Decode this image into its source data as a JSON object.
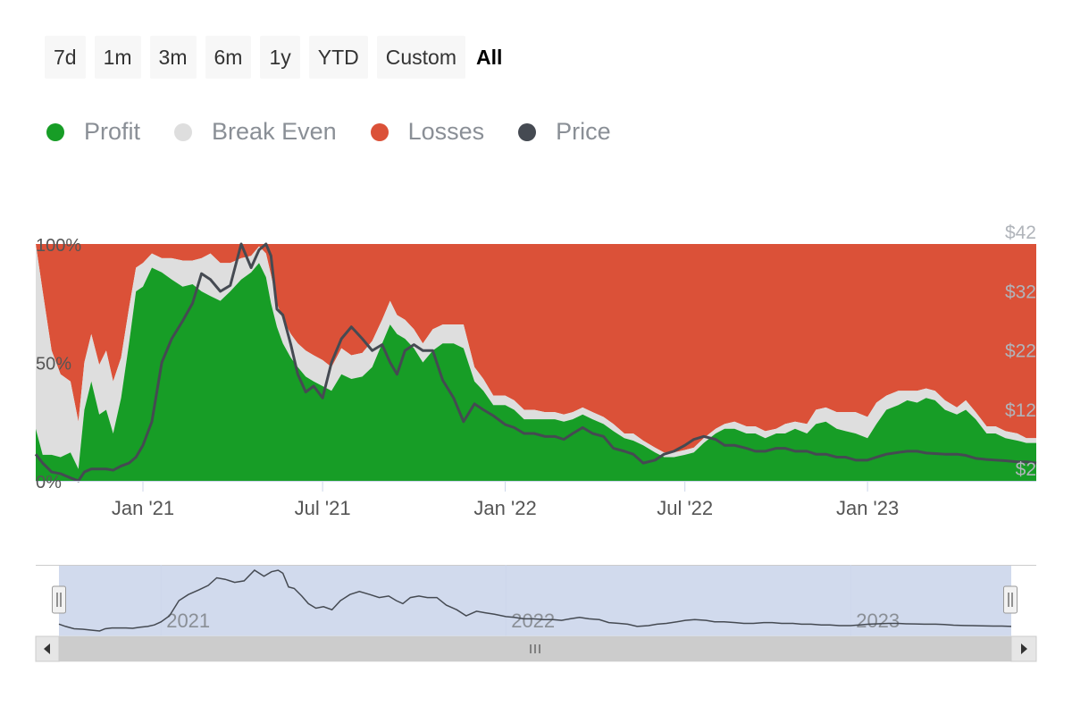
{
  "range_selector": {
    "buttons": [
      {
        "id": "7d",
        "label": "7d"
      },
      {
        "id": "1m",
        "label": "1m"
      },
      {
        "id": "3m",
        "label": "3m"
      },
      {
        "id": "6m",
        "label": "6m"
      },
      {
        "id": "1y",
        "label": "1y"
      },
      {
        "id": "ytd",
        "label": "YTD"
      },
      {
        "id": "custom",
        "label": "Custom"
      }
    ],
    "selected_label": "All"
  },
  "legend": [
    {
      "label": "Profit",
      "color": "#179d26"
    },
    {
      "label": "Break Even",
      "color": "#dedede"
    },
    {
      "label": "Losses",
      "color": "#db5138"
    },
    {
      "label": "Price",
      "color": "#454a52"
    }
  ],
  "chart_data": {
    "type": "area",
    "stacking": "percent",
    "x_start": "2020-09-15",
    "x_end": "2023-06-20",
    "x_ticks": [
      {
        "date": "2021-01-01",
        "label": "Jan '21"
      },
      {
        "date": "2021-07-01",
        "label": "Jul '21"
      },
      {
        "date": "2022-01-01",
        "label": "Jan '22"
      },
      {
        "date": "2022-07-01",
        "label": "Jul '22"
      },
      {
        "date": "2023-01-01",
        "label": "Jan '23"
      }
    ],
    "y_left": {
      "min": 0,
      "max": 100,
      "ticks": [
        {
          "value": 0,
          "label": "0%"
        },
        {
          "value": 50,
          "label": "50%"
        },
        {
          "value": 100,
          "label": "100%"
        }
      ]
    },
    "y_right": {
      "min": 2,
      "max": 42,
      "ticks": [
        {
          "value": 2,
          "label": "$2"
        },
        {
          "value": 12,
          "label": "$12"
        },
        {
          "value": 22,
          "label": "$22"
        },
        {
          "value": 32,
          "label": "$32"
        },
        {
          "value": 42,
          "label": "$42"
        }
      ]
    },
    "dates": [
      "2020-09-15",
      "2020-09-22",
      "2020-10-01",
      "2020-10-10",
      "2020-10-20",
      "2020-10-28",
      "2020-11-03",
      "2020-11-10",
      "2020-11-18",
      "2020-11-25",
      "2020-12-02",
      "2020-12-10",
      "2020-12-18",
      "2020-12-25",
      "2021-01-01",
      "2021-01-10",
      "2021-01-20",
      "2021-01-30",
      "2021-02-10",
      "2021-02-20",
      "2021-03-01",
      "2021-03-10",
      "2021-03-20",
      "2021-03-30",
      "2021-04-10",
      "2021-04-20",
      "2021-04-28",
      "2021-05-05",
      "2021-05-10",
      "2021-05-16",
      "2021-05-22",
      "2021-05-30",
      "2021-06-06",
      "2021-06-14",
      "2021-06-22",
      "2021-07-01",
      "2021-07-10",
      "2021-07-20",
      "2021-07-30",
      "2021-08-10",
      "2021-08-20",
      "2021-08-30",
      "2021-09-07",
      "2021-09-14",
      "2021-09-22",
      "2021-10-01",
      "2021-10-10",
      "2021-10-20",
      "2021-10-30",
      "2021-11-10",
      "2021-11-20",
      "2021-12-01",
      "2021-12-10",
      "2021-12-20",
      "2022-01-01",
      "2022-01-10",
      "2022-01-20",
      "2022-01-30",
      "2022-02-10",
      "2022-02-20",
      "2022-03-01",
      "2022-03-10",
      "2022-03-20",
      "2022-03-30",
      "2022-04-10",
      "2022-04-20",
      "2022-05-01",
      "2022-05-10",
      "2022-05-20",
      "2022-06-01",
      "2022-06-10",
      "2022-06-20",
      "2022-07-01",
      "2022-07-10",
      "2022-07-20",
      "2022-08-01",
      "2022-08-10",
      "2022-08-20",
      "2022-09-01",
      "2022-09-10",
      "2022-09-20",
      "2022-10-01",
      "2022-10-10",
      "2022-10-20",
      "2022-11-01",
      "2022-11-10",
      "2022-11-20",
      "2022-12-01",
      "2022-12-10",
      "2022-12-20",
      "2023-01-01",
      "2023-01-10",
      "2023-01-20",
      "2023-02-01",
      "2023-02-10",
      "2023-02-20",
      "2023-03-01",
      "2023-03-10",
      "2023-03-20",
      "2023-04-01",
      "2023-04-10",
      "2023-04-20",
      "2023-05-01",
      "2023-05-10",
      "2023-05-20",
      "2023-06-01",
      "2023-06-10",
      "2023-06-20"
    ],
    "series": [
      {
        "name": "Profit",
        "values": [
          22,
          11,
          11,
          10,
          12,
          5,
          30,
          42,
          28,
          30,
          20,
          35,
          58,
          80,
          82,
          90,
          88,
          85,
          82,
          83,
          80,
          78,
          76,
          80,
          85,
          88,
          92,
          86,
          75,
          65,
          58,
          52,
          48,
          44,
          42,
          40,
          38,
          45,
          43,
          44,
          48,
          58,
          66,
          62,
          60,
          56,
          50,
          55,
          58,
          58,
          56,
          42,
          38,
          32,
          32,
          30,
          26,
          26,
          26,
          26,
          25,
          26,
          28,
          26,
          24,
          21,
          18,
          17,
          15,
          12,
          10,
          10,
          11,
          12,
          16,
          20,
          22,
          22,
          20,
          20,
          18,
          20,
          20,
          22,
          20,
          24,
          25,
          22,
          21,
          20,
          18,
          24,
          30,
          32,
          34,
          33,
          35,
          34,
          30,
          28,
          30,
          26,
          20,
          20,
          18,
          17,
          16,
          16
        ]
      },
      {
        "name": "Break Even",
        "values": [
          78,
          69,
          44,
          35,
          30,
          20,
          20,
          20,
          21,
          25,
          22,
          17,
          15,
          10,
          10,
          6,
          6,
          9,
          11,
          10,
          14,
          18,
          16,
          12,
          9,
          7,
          7,
          10,
          12,
          10,
          10,
          10,
          10,
          11,
          11,
          11,
          10,
          11,
          10,
          10,
          11,
          10,
          10,
          8,
          8,
          8,
          8,
          9,
          8,
          8,
          10,
          6,
          5,
          4,
          4,
          4,
          4,
          4,
          3,
          3,
          3,
          3,
          3,
          3,
          3,
          3,
          2,
          3,
          2,
          2,
          2,
          2,
          2,
          2,
          2,
          2,
          2,
          3,
          3,
          3,
          3,
          2,
          4,
          3,
          4,
          6,
          6,
          7,
          8,
          9,
          9,
          9,
          6,
          6,
          4,
          5,
          4,
          4,
          4,
          3,
          4,
          3,
          3,
          3,
          3,
          3,
          2,
          2
        ]
      },
      {
        "name": "Losses",
        "values": [
          0,
          20,
          45,
          55,
          58,
          75,
          50,
          38,
          51,
          45,
          58,
          48,
          27,
          10,
          8,
          4,
          6,
          6,
          7,
          7,
          6,
          4,
          8,
          8,
          6,
          5,
          1,
          4,
          13,
          25,
          32,
          38,
          42,
          45,
          47,
          49,
          52,
          44,
          47,
          46,
          41,
          32,
          24,
          30,
          32,
          36,
          42,
          36,
          34,
          34,
          34,
          52,
          57,
          64,
          64,
          66,
          70,
          70,
          71,
          71,
          72,
          71,
          69,
          71,
          73,
          76,
          80,
          80,
          83,
          86,
          88,
          88,
          87,
          86,
          82,
          78,
          76,
          75,
          77,
          77,
          79,
          78,
          76,
          75,
          76,
          70,
          69,
          71,
          71,
          71,
          73,
          67,
          64,
          62,
          62,
          62,
          61,
          62,
          66,
          69,
          66,
          71,
          77,
          77,
          79,
          80,
          82,
          82
        ]
      },
      {
        "name": "Price",
        "values": [
          6.5,
          5,
          3.5,
          3.2,
          2.5,
          2,
          3.5,
          4,
          4,
          4,
          3.8,
          4.5,
          5,
          6,
          8,
          12,
          22,
          26,
          29,
          32,
          37,
          36,
          34,
          35,
          42,
          38,
          41,
          42,
          40,
          31,
          30,
          25,
          20,
          17,
          18,
          16,
          22,
          26,
          28,
          26,
          24,
          25,
          22,
          20,
          24,
          25,
          24,
          24,
          19,
          16,
          12,
          15,
          14,
          13,
          11.5,
          11,
          10,
          10,
          9.5,
          9.5,
          9,
          10,
          11,
          10,
          9.5,
          7.5,
          7,
          6.5,
          5,
          5.5,
          6.5,
          7,
          8,
          9,
          9.5,
          9,
          8,
          8,
          7.5,
          7,
          7,
          7.5,
          7.5,
          7,
          7,
          6.5,
          6.5,
          6,
          6,
          5.5,
          5.5,
          6,
          6.5,
          6.8,
          7,
          7,
          6.7,
          6.6,
          6.5,
          6.5,
          6.3,
          5.8,
          5.6,
          5.5,
          5.4,
          5.2,
          5.2,
          5
        ]
      }
    ],
    "navigator": {
      "year_labels": [
        {
          "date": "2021-01-01",
          "label": "2021"
        },
        {
          "date": "2022-01-01",
          "label": "2022"
        },
        {
          "date": "2023-01-01",
          "label": "2023"
        }
      ],
      "selection": "full range"
    }
  }
}
